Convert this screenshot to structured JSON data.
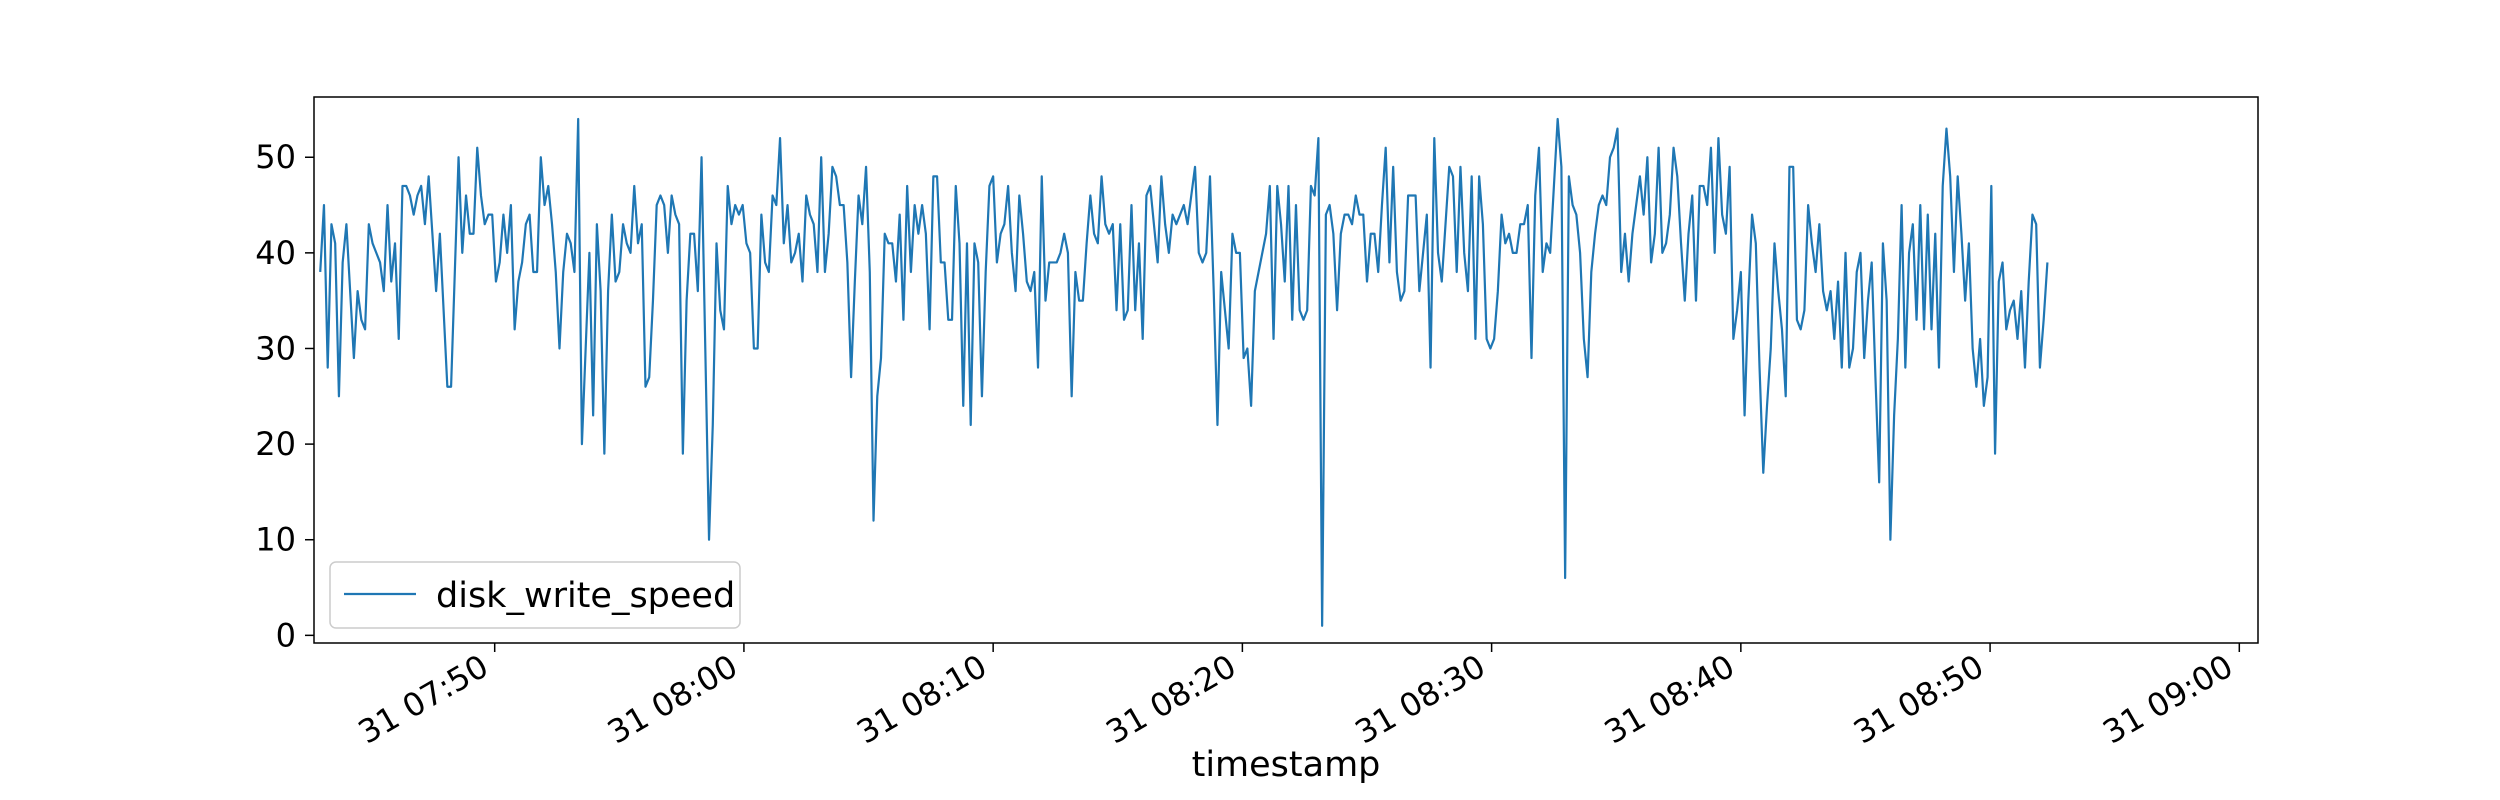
{
  "chart_data": {
    "type": "line",
    "xlabel": "timestamp",
    "ylabel": "",
    "x_range": [
      "31 07:43:00",
      "31 09:00:45"
    ],
    "ylim": [
      -0.8,
      56.3
    ],
    "y_ticks": [
      0,
      10,
      20,
      30,
      40,
      50
    ],
    "x_ticks": [
      "31 07:50",
      "31 08:00",
      "31 08:10",
      "31 08:20",
      "31 08:30",
      "31 08:40",
      "31 08:50",
      "31 09:00"
    ],
    "x_tick_minutes": [
      420,
      430,
      440,
      450,
      460,
      470,
      480,
      490
    ],
    "x_start_minute": 413,
    "x_step_minutes": 0.15,
    "grid": false,
    "legend": {
      "position": "lower-left",
      "entries": [
        "disk_write_speed"
      ]
    },
    "series": [
      {
        "name": "disk_write_speed",
        "color": "#1f77b4",
        "values": [
          38,
          45,
          28,
          43,
          41,
          25,
          39,
          43,
          36,
          29,
          36,
          33,
          32,
          43,
          41,
          40,
          39,
          36,
          45,
          37,
          41,
          31,
          47,
          47,
          46,
          44,
          46,
          47,
          43,
          48,
          42,
          36,
          42,
          34,
          26,
          26,
          38,
          50,
          40,
          46,
          42,
          42,
          51,
          46,
          43,
          44,
          44,
          37,
          39,
          44,
          40,
          45,
          32,
          37,
          39,
          43,
          44,
          38,
          38,
          50,
          45,
          47,
          43,
          38,
          30,
          38,
          42,
          41,
          38,
          54,
          20,
          30,
          40,
          23,
          43,
          36,
          19,
          36,
          44,
          37,
          38,
          43,
          41,
          40,
          47,
          41,
          43,
          26,
          27,
          35,
          45,
          46,
          45,
          40,
          46,
          44,
          43,
          19,
          35,
          42,
          42,
          36,
          50,
          30,
          10,
          22,
          41,
          34,
          32,
          47,
          43,
          45,
          44,
          45,
          41,
          40,
          30,
          30,
          44,
          39,
          38,
          46,
          45,
          52,
          41,
          45,
          39,
          40,
          42,
          37,
          46,
          44,
          43,
          38,
          50,
          38,
          42,
          49,
          48,
          45,
          45,
          39,
          27,
          37,
          46,
          43,
          49,
          38,
          12,
          25,
          29,
          42,
          41,
          41,
          37,
          44,
          33,
          47,
          38,
          45,
          42,
          45,
          42,
          32,
          48,
          48,
          39,
          39,
          33,
          33,
          47,
          41,
          24,
          41,
          22,
          41,
          39,
          25,
          38,
          47,
          48,
          39,
          42,
          43,
          47,
          40,
          36,
          46,
          42,
          37,
          36,
          38,
          28,
          48,
          35,
          39,
          39,
          39,
          40,
          42,
          40,
          25,
          38,
          35,
          35,
          41,
          46,
          42,
          41,
          48,
          43,
          42,
          43,
          34,
          43,
          33,
          34,
          45,
          34,
          41,
          31,
          46,
          47,
          43,
          39,
          48,
          43,
          40,
          44,
          43,
          44,
          45,
          43,
          46,
          49,
          40,
          39,
          40,
          48,
          36,
          22,
          38,
          34,
          30,
          42,
          40,
          40,
          29,
          30,
          24,
          36,
          38,
          40,
          42,
          47,
          31,
          47,
          43,
          37,
          47,
          33,
          45,
          34,
          33,
          34,
          47,
          46,
          52,
          1,
          44,
          45,
          42,
          34,
          42,
          44,
          44,
          43,
          46,
          44,
          44,
          37,
          42,
          42,
          38,
          45,
          51,
          39,
          49,
          38,
          35,
          36,
          46,
          46,
          46,
          36,
          40,
          44,
          28,
          52,
          40,
          37,
          43,
          49,
          48,
          38,
          49,
          40,
          36,
          48,
          31,
          48,
          43,
          31,
          30,
          31,
          36,
          44,
          41,
          42,
          40,
          40,
          43,
          43,
          45,
          29,
          46,
          51,
          38,
          41,
          40,
          47,
          54,
          49,
          6,
          48,
          45,
          44,
          40,
          31,
          27,
          38,
          42,
          45,
          46,
          45,
          50,
          51,
          53,
          38,
          42,
          37,
          42,
          45,
          48,
          44,
          50,
          39,
          42,
          51,
          40,
          41,
          44,
          51,
          48,
          41,
          35,
          42,
          46,
          35,
          47,
          47,
          45,
          51,
          40,
          52,
          44,
          42,
          49,
          31,
          34,
          38,
          23,
          35,
          44,
          41,
          28,
          17,
          24,
          30,
          41,
          36,
          32,
          25,
          49,
          49,
          33,
          32,
          34,
          45,
          41,
          38,
          43,
          36,
          34,
          36,
          31,
          37,
          28,
          40,
          28,
          30,
          38,
          40,
          29,
          35,
          39,
          27,
          16,
          41,
          35,
          10,
          23,
          31,
          45,
          28,
          40,
          43,
          33,
          45,
          32,
          44,
          32,
          42,
          28,
          47,
          53,
          48,
          38,
          48,
          42,
          35,
          41,
          30,
          26,
          31,
          24,
          27,
          47,
          19,
          37,
          39,
          32,
          34,
          35,
          31,
          36,
          28,
          37,
          44,
          43,
          28,
          33,
          39
        ]
      }
    ]
  }
}
